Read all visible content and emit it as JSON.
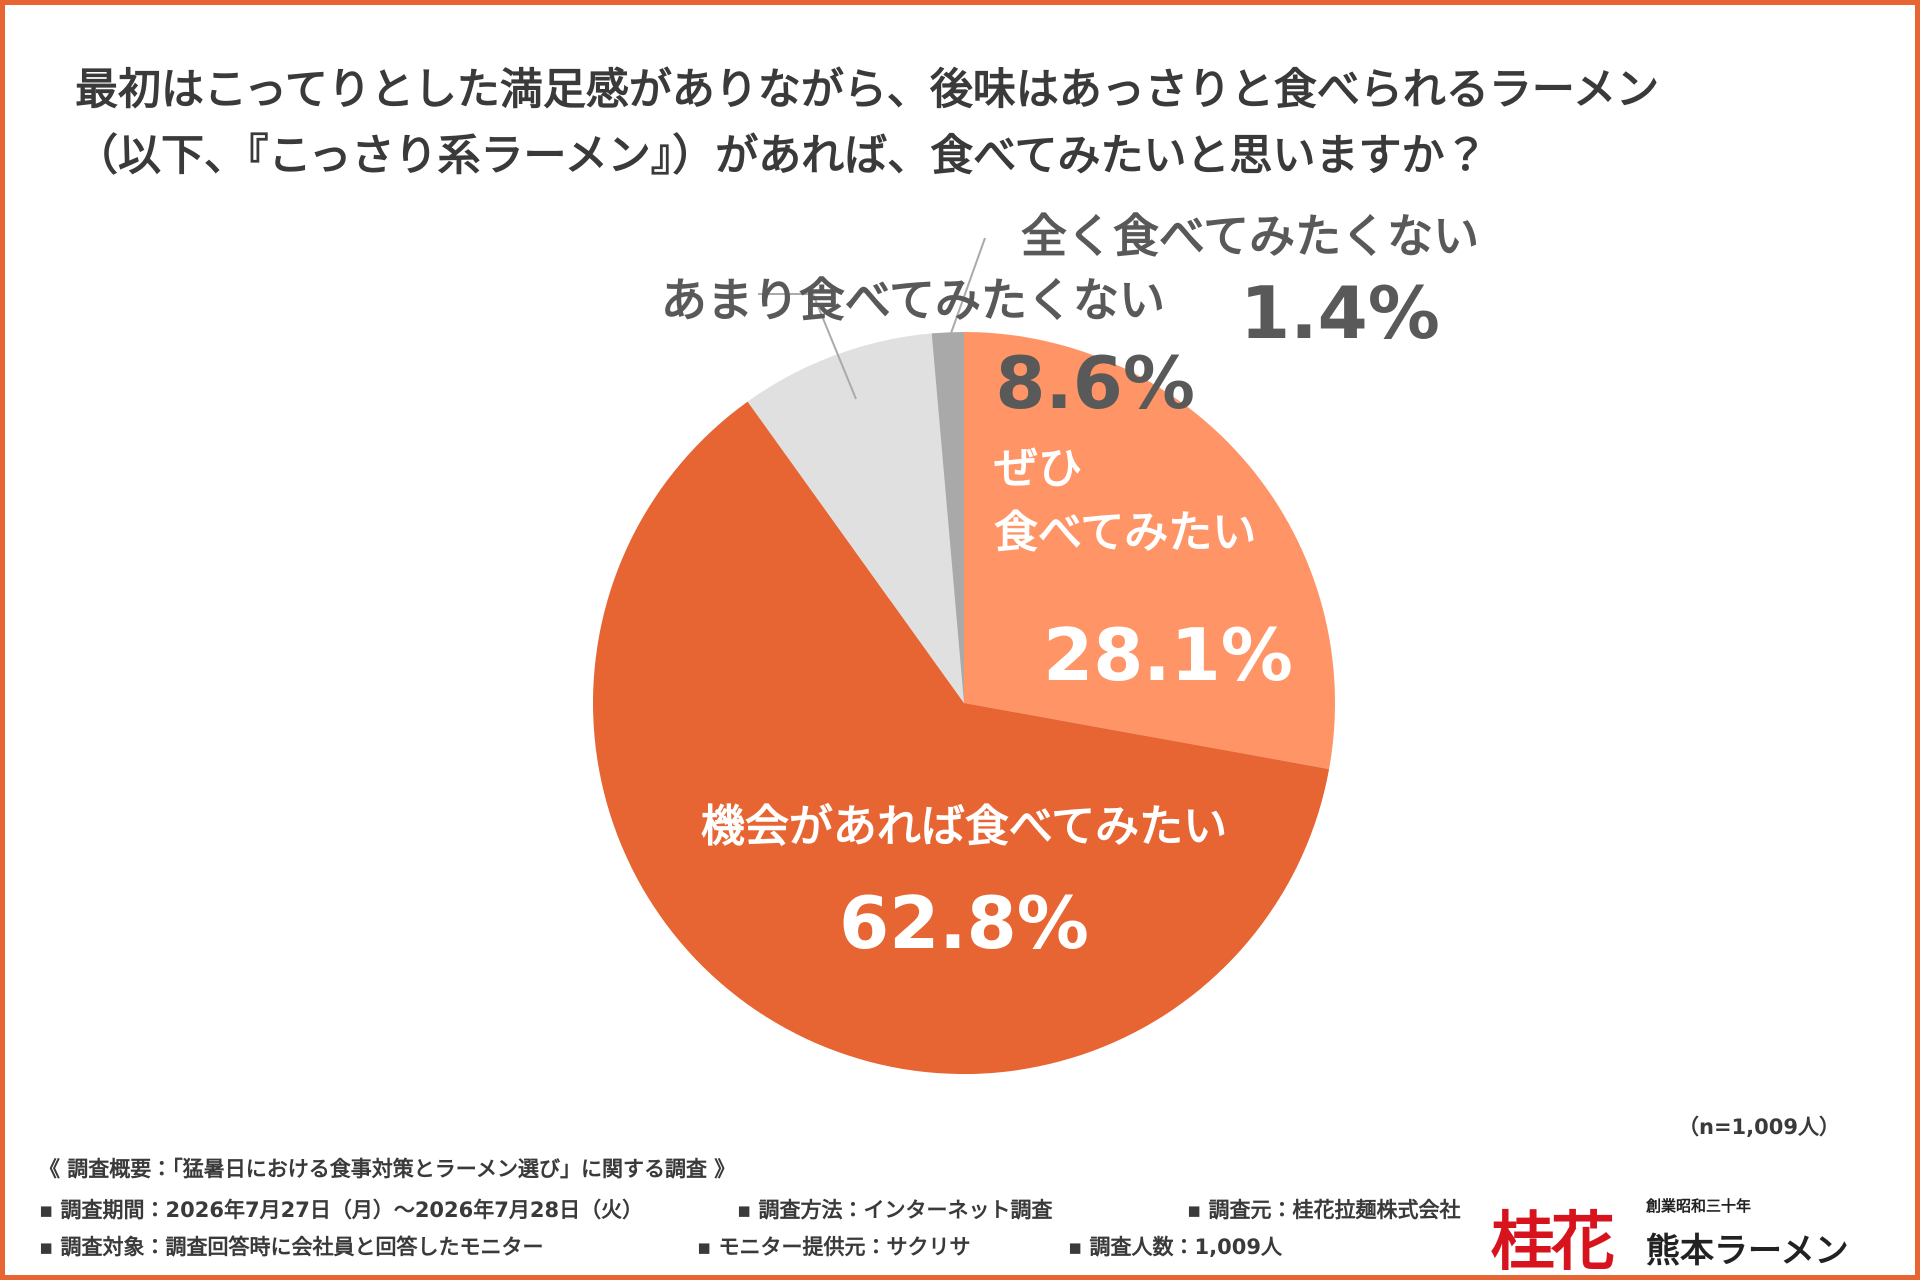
{
  "chart_data": {
    "type": "pie",
    "title": "最初はこってりとした満足感がありながら、後味はあっさりと食べられるラーメン\n（以下、『こっさり系ラーメン』）があれば、食べてみたいと思いますか？",
    "categories": [
      "ぜひ\n食べてみたい",
      "機会があれば食べてみたい",
      "あまり食べてみたくない",
      "全く食べてみたくない"
    ],
    "values": [
      28.1,
      62.8,
      8.6,
      1.4
    ],
    "value_labels": [
      "28.1%",
      "62.8%",
      "8.6%",
      "1.4%"
    ],
    "colors": [
      "#FF9466",
      "#E66532",
      "#E0E0E0",
      "#A9A9A9"
    ],
    "note": "（n=1,009人）"
  },
  "footer": {
    "heading": "《 調査概要：「猛暑日における食事対策とラーメン選び」に関する調査 》",
    "rows": [
      [
        "▪ 調査期間：2026年7月27日（月）～2026年7月28日（火）",
        "▪ 調査方法：インターネット調査",
        "▪ 調査元：桂花拉麺株式会社"
      ],
      [
        "▪ 調査対象：調査回答時に会社員と回答したモニター",
        "▪ モニター提供元：サクリサ",
        "▪ 調査人数：1,009人"
      ]
    ]
  },
  "logo": {
    "mark": "桂花",
    "tagline": "創業昭和三十年",
    "name": "熊本ラーメン"
  }
}
